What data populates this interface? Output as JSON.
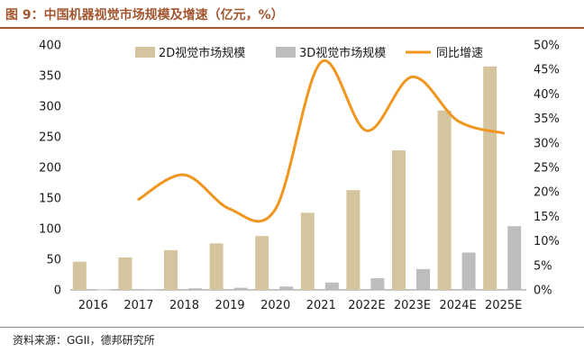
{
  "figure": {
    "title": "图 9：中国机器视觉市场规模及增速（亿元，%）",
    "source": "资料来源：GGII，德邦研究所"
  },
  "colors": {
    "bar_2d": "#d5c59e",
    "bar_3d": "#bdbdbd",
    "line": "#f0961e",
    "accent": "#a2562f"
  },
  "chart_data": {
    "type": "bar+line",
    "categories": [
      "2016",
      "2017",
      "2018",
      "2019",
      "2020",
      "2021",
      "2022E",
      "2023E",
      "2024E",
      "2025E"
    ],
    "series": [
      {
        "name": "2D视觉市场规模",
        "type": "bar",
        "axis": "left",
        "values": [
          46,
          53,
          65,
          76,
          88,
          126,
          163,
          228,
          293,
          365
        ]
      },
      {
        "name": "3D视觉市场规模",
        "type": "bar",
        "axis": "left",
        "values": [
          0.5,
          1.0,
          2.5,
          3.5,
          5.5,
          12,
          19,
          34,
          61,
          104
        ]
      },
      {
        "name": "同比增速",
        "type": "line",
        "axis": "right",
        "values": [
          null,
          18.5,
          23.5,
          16.5,
          16.5,
          46.5,
          32.5,
          43.5,
          34.5,
          32.0
        ]
      }
    ],
    "y_left": {
      "min": 0,
      "max": 400,
      "step": 50,
      "ticks": [
        "0",
        "50",
        "100",
        "150",
        "200",
        "250",
        "300",
        "350",
        "400"
      ]
    },
    "y_right": {
      "min": 0,
      "max": 50,
      "step": 5,
      "ticks": [
        "0%",
        "5%",
        "10%",
        "15%",
        "20%",
        "25%",
        "30%",
        "35%",
        "40%",
        "45%",
        "50%"
      ]
    },
    "legend": {
      "position": "top-center"
    }
  }
}
